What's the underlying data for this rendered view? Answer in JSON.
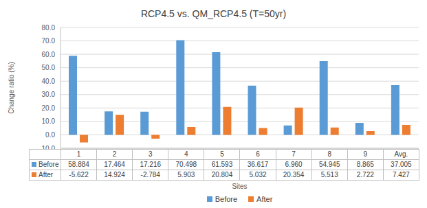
{
  "chart_data": {
    "type": "bar",
    "title": "RCP4.5 vs. QM_RCP4.5 (T=50yr)",
    "x_label": "Sites",
    "y_label": "Change ratio (%)",
    "categories": [
      "1",
      "2",
      "3",
      "4",
      "5",
      "6",
      "7",
      "8",
      "9",
      "Avg."
    ],
    "series": [
      {
        "name": "Before",
        "color": "#5b9bd5",
        "values": [
          58.884,
          17.464,
          17.216,
          70.498,
          61.593,
          36.617,
          6.96,
          54.945,
          8.865,
          37.005
        ],
        "value_labels": [
          "58.884",
          "17.464",
          "17.216",
          "70.498",
          "61.593",
          "36.617",
          "6.960",
          "54.945",
          "8.865",
          "37.005"
        ]
      },
      {
        "name": "After",
        "color": "#ed7d31",
        "values": [
          -5.622,
          14.924,
          -2.784,
          5.903,
          20.804,
          5.032,
          20.354,
          5.513,
          2.722,
          7.427
        ],
        "value_labels": [
          "-5.622",
          "14.924",
          "-2.784",
          "5.903",
          "20.804",
          "5.032",
          "20.354",
          "5.513",
          "2.722",
          "7.427"
        ]
      }
    ],
    "ylim": [
      -10,
      80
    ],
    "yticks": [
      {
        "value": -10,
        "label": "-10.0"
      },
      {
        "value": 0,
        "label": "0.0"
      },
      {
        "value": 10,
        "label": "10.0"
      },
      {
        "value": 20,
        "label": "20.0"
      },
      {
        "value": 30,
        "label": "30.0"
      },
      {
        "value": 40,
        "label": "40.0"
      },
      {
        "value": 50,
        "label": "50.0"
      },
      {
        "value": 60,
        "label": "60.0"
      },
      {
        "value": 70,
        "label": "70.0"
      },
      {
        "value": 80,
        "label": "80.0"
      }
    ],
    "grid": true,
    "legend": "bottom"
  }
}
